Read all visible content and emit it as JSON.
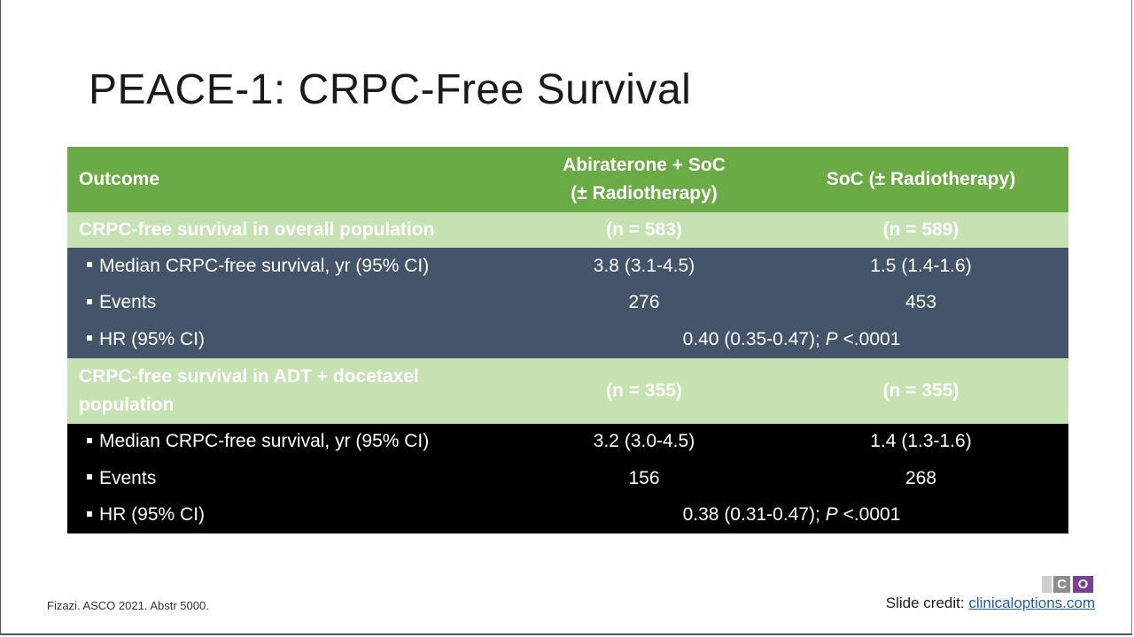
{
  "slide": {
    "title": "PEACE-1: CRPC-Free Survival",
    "footnote": "Fizazi. ASCO 2021. Abstr 5000.",
    "credit_label": "Slide credit: ",
    "credit_link": "clinicaloptions.com",
    "logo_letters": [
      "C",
      "O"
    ]
  },
  "table": {
    "header": {
      "col1": "Outcome",
      "col2_line1": "Abiraterone + SoC",
      "col2_line2": "(± Radiotherapy)",
      "col3": "SoC (± Radiotherapy)"
    },
    "sections": [
      {
        "title": "CRPC-free survival in overall population",
        "n_abi": "(n = 583)",
        "n_soc": "(n = 589)",
        "rows": [
          {
            "label": "Median CRPC-free survival, yr (95% CI)",
            "abi": "3.8 (3.1-4.5)",
            "soc": "1.5 (1.4-1.6)"
          },
          {
            "label": "Events",
            "abi": "276",
            "soc": "453"
          }
        ],
        "hr_label": "HR (95% CI)",
        "hr_value": "0.40 (0.35-0.47); ",
        "p_label": "P",
        "p_value": " <.0001"
      },
      {
        "title": "CRPC-free survival in ADT + docetaxel population",
        "n_abi": "(n = 355)",
        "n_soc": "(n = 355)",
        "rows": [
          {
            "label": "Median CRPC-free survival, yr (95% CI)",
            "abi": "3.2 (3.0-4.5)",
            "soc": "1.4 (1.3-1.6)"
          },
          {
            "label": "Events",
            "abi": "156",
            "soc": "268"
          }
        ],
        "hr_label": "HR (95% CI)",
        "hr_value": "0.38 (0.31-0.47); ",
        "p_label": "P",
        "p_value": " <.0001"
      }
    ]
  },
  "colors": {
    "header_green": "#6bab45",
    "section_light_green": "#c6e2b3",
    "section1_rows": "#44546a",
    "section2_rows": "#000000",
    "logo_purple": "#7b3f98"
  }
}
